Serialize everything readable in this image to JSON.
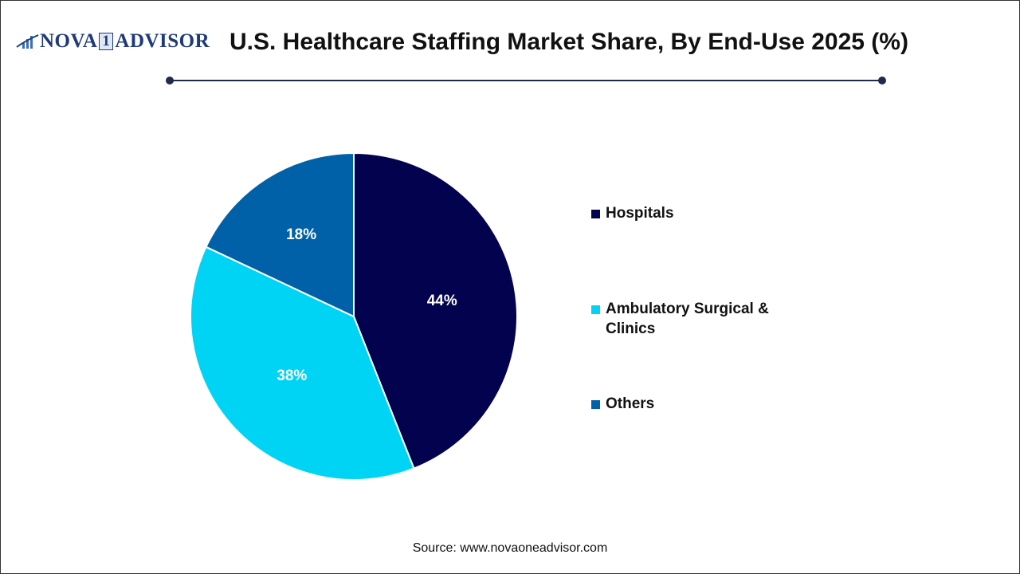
{
  "logo": {
    "text_left": "NOVA",
    "text_mid": "1",
    "text_right": "ADVISOR"
  },
  "source": "Source: www.novaoneadvisor.com",
  "chart_data": {
    "type": "pie",
    "title": "U.S. Healthcare Staffing Market Share, By End-Use 2025 (%)",
    "categories": [
      "Hospitals",
      "Ambulatory Surgical & Clinics",
      "Others"
    ],
    "values": [
      44,
      38,
      18
    ],
    "data_labels": [
      "44%",
      "38%",
      "18%"
    ],
    "colors": [
      "#02024f",
      "#00d4f5",
      "#0061a8"
    ],
    "start_angle": "12 o'clock",
    "direction": "clockwise",
    "legend_placement": "right",
    "legend": [
      {
        "label_line1": "Hospitals",
        "label_line2": ""
      },
      {
        "label_line1": "Ambulatory Surgical &",
        "label_line2": "Clinics"
      },
      {
        "label_line1": "Others",
        "label_line2": ""
      }
    ]
  }
}
